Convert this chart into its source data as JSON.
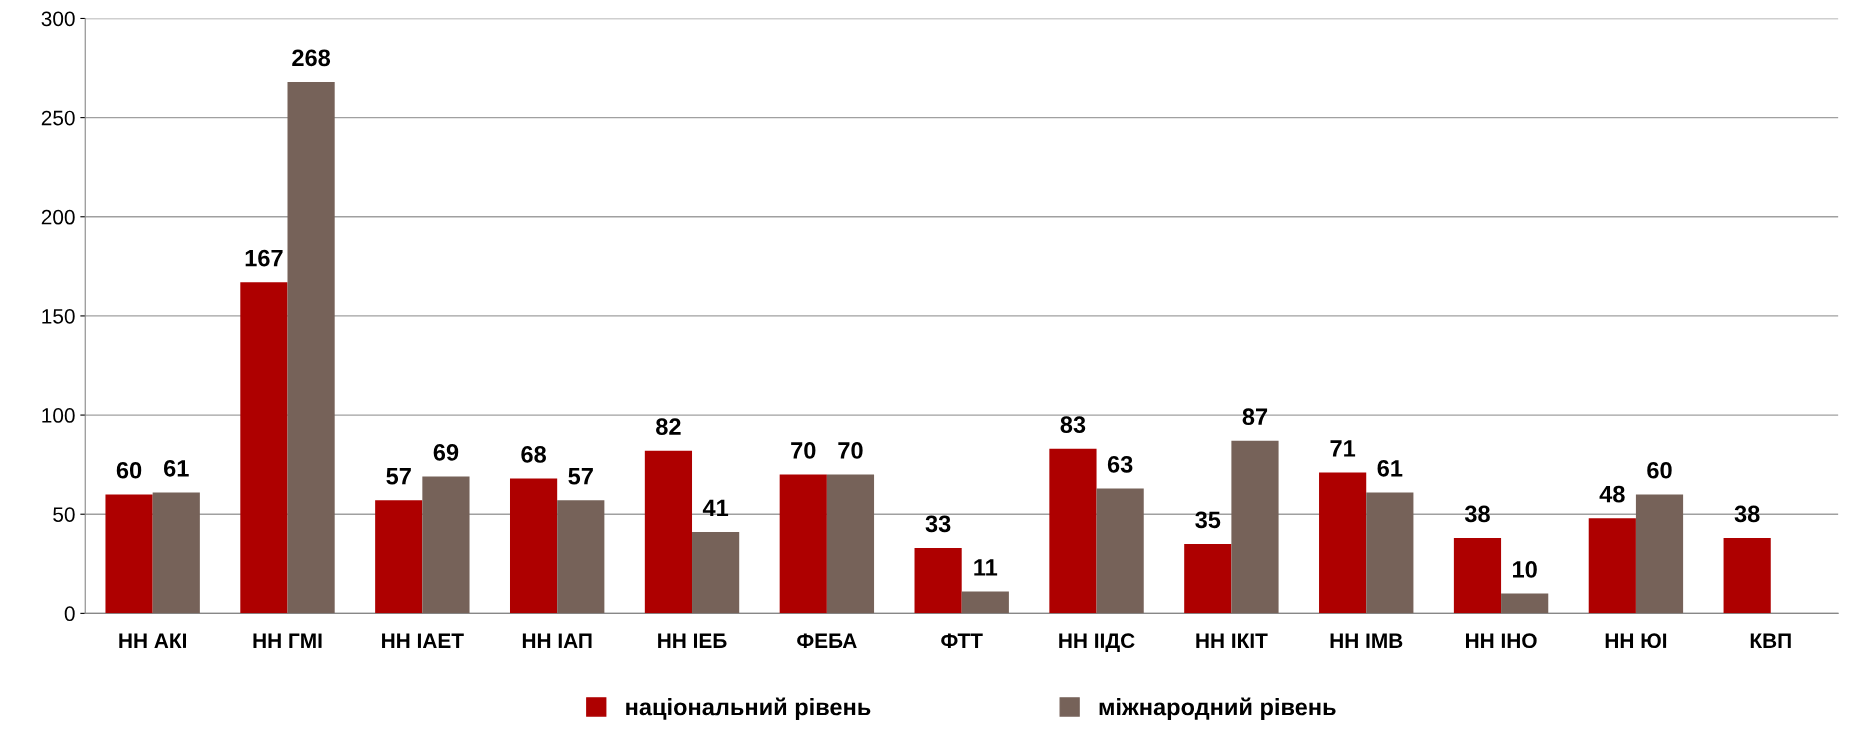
{
  "chart_data": {
    "type": "bar",
    "categories": [
      "НН АКІ",
      "НН ГМІ",
      "НН ІАЕТ",
      "НН ІАП",
      "НН ІЕБ",
      "ФЕБА",
      "ФТТ",
      "НН ІІДС",
      "НН ІКІТ",
      "НН ІМВ",
      "НН ІНО",
      "НН ЮІ",
      "КВП"
    ],
    "series": [
      {
        "name": "національний рівень",
        "color": "#ae0000",
        "values": [
          60,
          167,
          57,
          68,
          82,
          70,
          33,
          83,
          35,
          71,
          38,
          48,
          38
        ]
      },
      {
        "name": "міжнародний рівень",
        "color": "#766259",
        "values": [
          61,
          268,
          69,
          57,
          41,
          70,
          11,
          63,
          87,
          61,
          10,
          60,
          null
        ]
      }
    ],
    "ylim": [
      0,
      300
    ],
    "yticks": [
      0,
      50,
      100,
      150,
      200,
      250,
      300
    ],
    "grid": "y",
    "legend": "bottom",
    "data_labels": true
  }
}
